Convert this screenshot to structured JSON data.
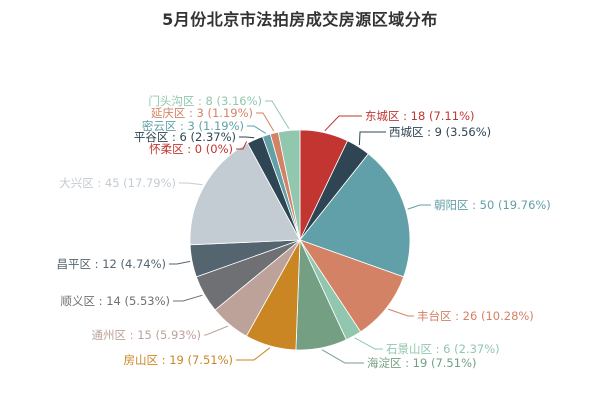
{
  "chart_data": {
    "type": "pie",
    "title": "5月份北京市法拍房成交房源区域分布",
    "start_direction": "top-clockwise",
    "slices": [
      {
        "name": "东城区",
        "value": 18,
        "label": "东城区 : 18 (7.11%)",
        "color": "#c23531"
      },
      {
        "name": "西城区",
        "value": 9,
        "label": "西城区 : 9 (3.56%)",
        "color": "#2f4554"
      },
      {
        "name": "朝阳区",
        "value": 50,
        "label": "朝阳区 : 50 (19.76%)",
        "color": "#61a0a8"
      },
      {
        "name": "丰台区",
        "value": 26,
        "label": "丰台区 : 26 (10.28%)",
        "color": "#d48265"
      },
      {
        "name": "石景山区",
        "value": 6,
        "label": "石景山区 : 6 (2.37%)",
        "color": "#91c7ae"
      },
      {
        "name": "海淀区",
        "value": 19,
        "label": "海淀区 : 19 (7.51%)",
        "color": "#749f83"
      },
      {
        "name": "房山区",
        "value": 19,
        "label": "房山区 : 19 (7.51%)",
        "color": "#ca8622"
      },
      {
        "name": "通州区",
        "value": 15,
        "label": "通州区 : 15 (5.93%)",
        "color": "#bda29a"
      },
      {
        "name": "顺义区",
        "value": 14,
        "label": "顺义区 : 14 (5.53%)",
        "color": "#6e7074"
      },
      {
        "name": "昌平区",
        "value": 12,
        "label": "昌平区 : 12 (4.74%)",
        "color": "#546570"
      },
      {
        "name": "大兴区",
        "value": 45,
        "label": "大兴区 : 45 (17.79%)",
        "color": "#c4ccd3"
      },
      {
        "name": "怀柔区",
        "value": 0,
        "label": "怀柔区 : 0 (0%)",
        "color": "#c23531"
      },
      {
        "name": "平谷区",
        "value": 6,
        "label": "平谷区 : 6 (2.37%)",
        "color": "#2f4554"
      },
      {
        "name": "密云区",
        "value": 3,
        "label": "密云区 : 3 (1.19%)",
        "color": "#61a0a8"
      },
      {
        "name": "延庆区",
        "value": 3,
        "label": "延庆区 : 3 (1.19%)",
        "color": "#d48265"
      },
      {
        "name": "门头沟区",
        "value": 8,
        "label": "门头沟区 : 8 (3.16%)",
        "color": "#91c7ae"
      }
    ]
  }
}
